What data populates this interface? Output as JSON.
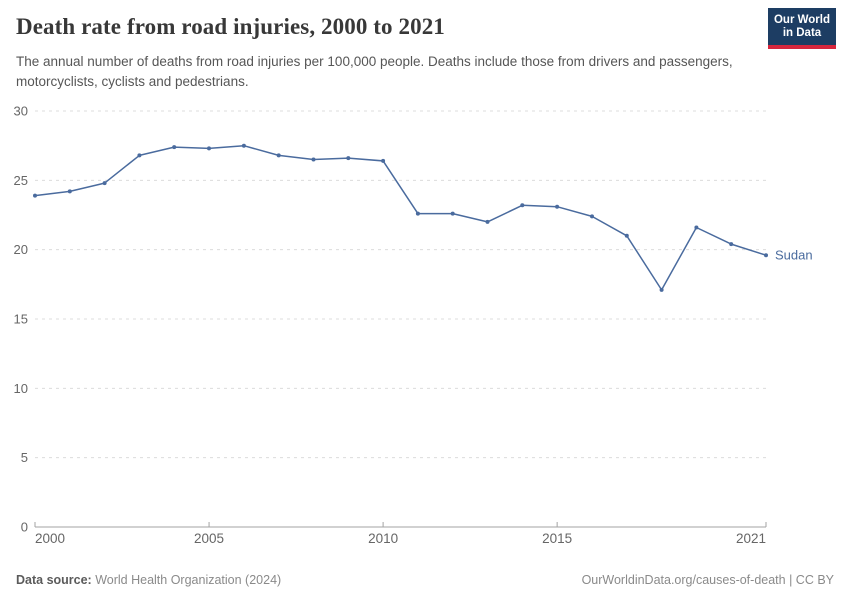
{
  "header": {
    "title": "Death rate from road injuries, 2000 to 2021",
    "subtitle": "The annual number of deaths from road injuries per 100,000 people. Deaths include those from drivers and passengers, motorcyclists, cyclists and pedestrians.",
    "logo": {
      "line1": "Our World",
      "line2": "in Data"
    }
  },
  "chart_data": {
    "type": "line",
    "title": "Death rate from road injuries, 2000 to 2021",
    "x": [
      2000,
      2001,
      2002,
      2003,
      2004,
      2005,
      2006,
      2007,
      2008,
      2009,
      2010,
      2011,
      2012,
      2013,
      2014,
      2015,
      2016,
      2017,
      2018,
      2019,
      2020,
      2021
    ],
    "series": [
      {
        "name": "Sudan",
        "values": [
          23.9,
          24.2,
          24.8,
          26.8,
          27.4,
          27.3,
          27.5,
          26.8,
          26.5,
          26.6,
          26.4,
          22.6,
          22.6,
          22.0,
          23.2,
          23.1,
          22.4,
          21.0,
          17.1,
          21.6,
          20.4,
          19.6
        ]
      }
    ],
    "xlabel": "",
    "ylabel": "",
    "ylim": [
      0,
      30
    ],
    "yticks": [
      0,
      5,
      10,
      15,
      20,
      25,
      30
    ],
    "xticks": [
      2000,
      2005,
      2010,
      2015,
      2021
    ],
    "grid": "horizontal-dashed",
    "legend": "end-of-line-label",
    "end_label": "Sudan"
  },
  "footer": {
    "source_label": "Data source:",
    "source_value": " World Health Organization (2024)",
    "license": "OurWorldinData.org/causes-of-death | CC BY"
  },
  "colors": {
    "line": "#4a6b9e",
    "logo_bg": "#1d3d63",
    "logo_accent": "#d7263d",
    "grid": "#dcdcdc",
    "axis": "#a3a3a3",
    "tick_label": "#666666",
    "title": "#383838",
    "subtitle": "#565656"
  }
}
